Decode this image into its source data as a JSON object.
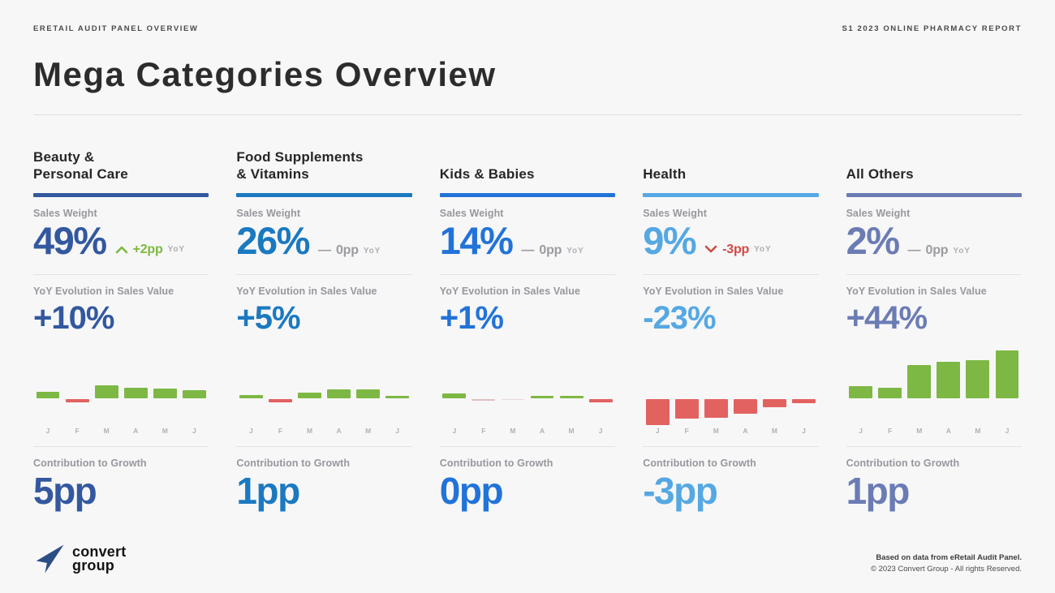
{
  "page": {
    "eyebrow_left": "ERETAIL AUDIT PANEL OVERVIEW",
    "eyebrow_right": "S1 2023 ONLINE PHARMACY REPORT",
    "title": "Mega Categories Overview"
  },
  "labels": {
    "sales_weight": "Sales Weight",
    "yoy_evolution": "YoY Evolution in Sales Value",
    "contribution": "Contribution to Growth",
    "yoy": "YoY"
  },
  "columns": [
    {
      "name": "Beauty & Personal Care",
      "title_lines": [
        "Beauty &",
        "Personal Care"
      ],
      "accent": "#33589f",
      "sales_weight": "49%",
      "delta": {
        "icon": "chevron-up",
        "text": "+2pp",
        "color": "#7cb93e"
      },
      "yoy_evolution": "+10%",
      "contribution": "5pp"
    },
    {
      "name": "Food Supplements & Vitamins",
      "title_lines": [
        "Food Supplements",
        "& Vitamins"
      ],
      "accent": "#1b79c0",
      "sales_weight": "26%",
      "delta": {
        "icon": "dash",
        "text": "0pp",
        "color": "#9b9ba1"
      },
      "yoy_evolution": "+5%",
      "contribution": "1pp"
    },
    {
      "name": "Kids & Babies",
      "title_lines": [
        "Kids & Babies"
      ],
      "accent": "#2273d8",
      "sales_weight": "14%",
      "delta": {
        "icon": "dash",
        "text": "0pp",
        "color": "#9b9ba1"
      },
      "yoy_evolution": "+1%",
      "contribution": "0pp"
    },
    {
      "name": "Health",
      "title_lines": [
        "Health"
      ],
      "accent": "#55a8e2",
      "sales_weight": "9%",
      "delta": {
        "icon": "chevron-down",
        "text": "-3pp",
        "color": "#cf4a43"
      },
      "yoy_evolution": "-23%",
      "contribution": "-3pp"
    },
    {
      "name": "All Others",
      "title_lines": [
        "All Others"
      ],
      "accent": "#6b7cb4",
      "sales_weight": "2%",
      "delta": {
        "icon": "dash",
        "text": "0pp",
        "color": "#9b9ba1"
      },
      "yoy_evolution": "+44%",
      "contribution": "1pp"
    }
  ],
  "chart_data": [
    {
      "type": "bar",
      "title": "Beauty & Personal Care — monthly YoY evolution",
      "categories": [
        "J",
        "F",
        "M",
        "A",
        "M",
        "J"
      ],
      "values": [
        8,
        -4,
        16,
        13,
        12,
        10
      ],
      "bar_colors": [
        "#7db844",
        "#e2625f",
        "#7db844",
        "#7db844",
        "#7db844",
        "#7db844"
      ],
      "axis": "hidden",
      "note": "relative heights, no scale shown"
    },
    {
      "type": "bar",
      "title": "Food Supplements & Vitamins — monthly YoY evolution",
      "categories": [
        "J",
        "F",
        "M",
        "A",
        "M",
        "J"
      ],
      "values": [
        4,
        -4,
        7,
        11,
        11,
        3
      ],
      "bar_colors": [
        "#7db844",
        "#e2625f",
        "#7db844",
        "#7db844",
        "#7db844",
        "#7db844"
      ],
      "axis": "hidden",
      "note": "relative heights, no scale shown"
    },
    {
      "type": "bar",
      "title": "Kids & Babies — monthly YoY evolution",
      "categories": [
        "J",
        "F",
        "M",
        "A",
        "M",
        "J"
      ],
      "values": [
        6,
        -2,
        -1,
        3,
        3,
        -4
      ],
      "bar_colors": [
        "#7db844",
        "#ddc0c0",
        "#ead9d9",
        "#7db844",
        "#7db844",
        "#e2625f"
      ],
      "axis": "hidden",
      "note": "relative heights, no scale shown"
    },
    {
      "type": "bar",
      "title": "Health — monthly YoY evolution",
      "categories": [
        "J",
        "F",
        "M",
        "A",
        "M",
        "J"
      ],
      "values": [
        -32,
        -24,
        -23,
        -18,
        -10,
        -5
      ],
      "bar_colors": [
        "#e2625f",
        "#e2625f",
        "#e2625f",
        "#e2625f",
        "#e2625f",
        "#e2625f"
      ],
      "axis": "hidden",
      "note": "relative heights, no scale shown"
    },
    {
      "type": "bar",
      "title": "All Others — monthly YoY evolution",
      "categories": [
        "J",
        "F",
        "M",
        "A",
        "M",
        "J"
      ],
      "values": [
        15,
        13,
        41,
        45,
        47,
        59
      ],
      "bar_colors": [
        "#7db844",
        "#7db844",
        "#7db844",
        "#7db844",
        "#7db844",
        "#7db844"
      ],
      "axis": "hidden",
      "note": "relative heights, no scale shown"
    }
  ],
  "footer": {
    "logo_line1": "convert",
    "logo_line2": "group",
    "line1": "Based on data from eRetail Audit Panel.",
    "line2": "© 2023 Convert Group - All rights Reserved."
  }
}
